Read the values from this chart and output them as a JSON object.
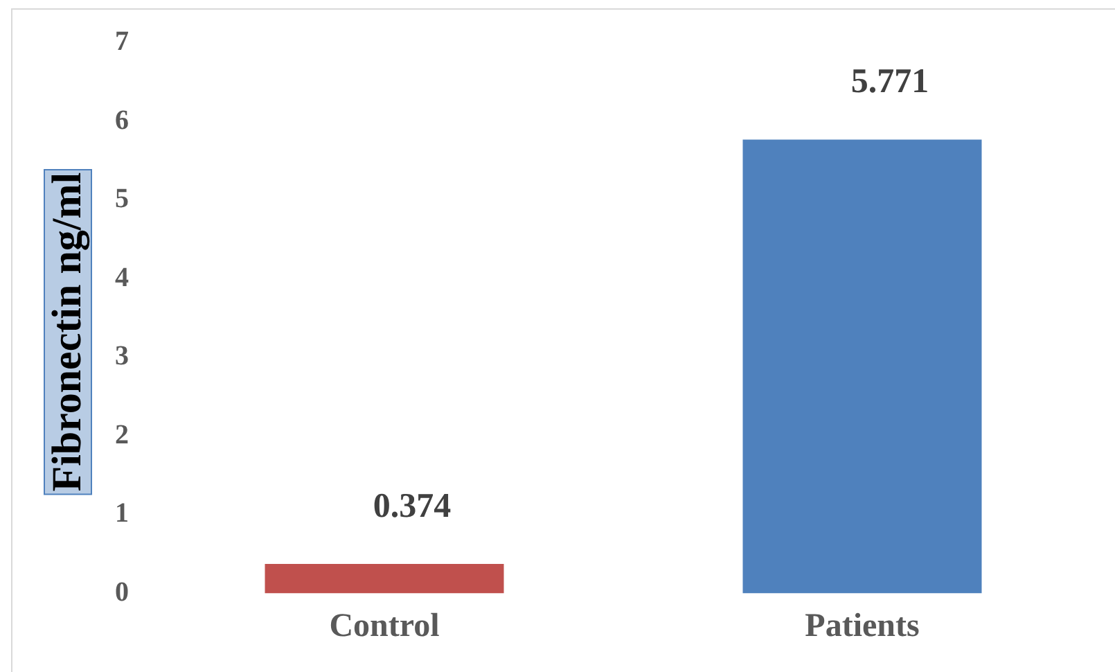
{
  "chart_data": {
    "type": "bar",
    "ylabel": "Fibronectin ng/ml",
    "categories": [
      "Control",
      "Patients"
    ],
    "values": [
      0.374,
      5.771
    ],
    "colors": [
      "#c0504d",
      "#4f81bd"
    ],
    "ylim": [
      0,
      7
    ],
    "yticks": [
      0,
      1,
      2,
      3,
      4,
      5,
      6,
      7
    ],
    "data_labels": true
  }
}
